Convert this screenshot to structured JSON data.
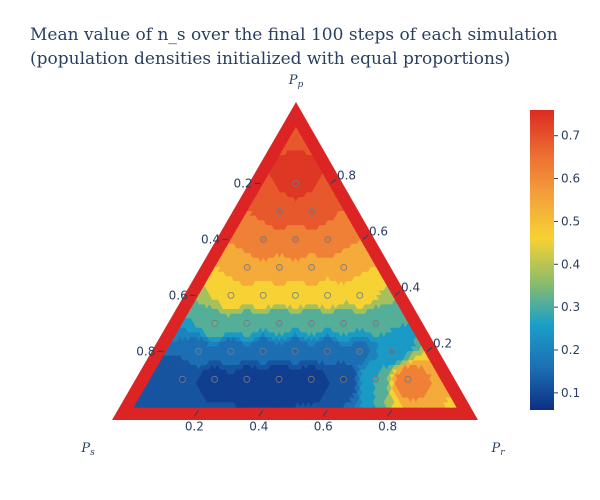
{
  "chart_data": {
    "type": "ternary-contour",
    "title_lines": [
      "Mean value of n_s over the final 100 steps of each simulation",
      "(population densities initialized with equal proportions)"
    ],
    "axes": {
      "top": {
        "symbol": "P",
        "sub": "p",
        "ticks": [
          "0.2",
          "0.4",
          "0.6",
          "0.8"
        ]
      },
      "left": {
        "symbol": "P",
        "sub": "s",
        "ticks": [
          "0.8",
          "0.6",
          "0.4",
          "0.2"
        ]
      },
      "right": {
        "symbol": "P",
        "sub": "r",
        "ticks": [
          "0.2",
          "0.4",
          "0.6",
          "0.8"
        ]
      }
    },
    "colorbar": {
      "ticks": [
        "0.1",
        "0.2",
        "0.3",
        "0.4",
        "0.5",
        "0.6",
        "0.7"
      ],
      "range": [
        0.06,
        0.76
      ],
      "colorscale": [
        "#0d2f84",
        "#1d6fb4",
        "#1aa0c8",
        "#8fbd68",
        "#f6d234",
        "#f4a13b",
        "#ec6b32",
        "#db2b22"
      ]
    },
    "levels": [
      0.07,
      0.1,
      0.14,
      0.18,
      0.22,
      0.28,
      0.34,
      0.42,
      0.5,
      0.58,
      0.66,
      0.72
    ],
    "samples": [
      {
        "pp": 0.1,
        "ps": 0.1,
        "pr": 0.8,
        "value": 0.62
      },
      {
        "pp": 0.1,
        "ps": 0.2,
        "pr": 0.7,
        "value": 0.28
      },
      {
        "pp": 0.1,
        "ps": 0.3,
        "pr": 0.6,
        "value": 0.1
      },
      {
        "pp": 0.1,
        "ps": 0.4,
        "pr": 0.5,
        "value": 0.08
      },
      {
        "pp": 0.1,
        "ps": 0.5,
        "pr": 0.4,
        "value": 0.07
      },
      {
        "pp": 0.1,
        "ps": 0.6,
        "pr": 0.3,
        "value": 0.08
      },
      {
        "pp": 0.1,
        "ps": 0.7,
        "pr": 0.2,
        "value": 0.09
      },
      {
        "pp": 0.1,
        "ps": 0.8,
        "pr": 0.1,
        "value": 0.1
      },
      {
        "pp": 0.2,
        "ps": 0.1,
        "pr": 0.7,
        "value": 0.22
      },
      {
        "pp": 0.2,
        "ps": 0.2,
        "pr": 0.6,
        "value": 0.17
      },
      {
        "pp": 0.2,
        "ps": 0.3,
        "pr": 0.5,
        "value": 0.15
      },
      {
        "pp": 0.2,
        "ps": 0.4,
        "pr": 0.4,
        "value": 0.15
      },
      {
        "pp": 0.2,
        "ps": 0.5,
        "pr": 0.3,
        "value": 0.15
      },
      {
        "pp": 0.2,
        "ps": 0.6,
        "pr": 0.2,
        "value": 0.16
      },
      {
        "pp": 0.2,
        "ps": 0.7,
        "pr": 0.1,
        "value": 0.17
      },
      {
        "pp": 0.3,
        "ps": 0.1,
        "pr": 0.6,
        "value": 0.3
      },
      {
        "pp": 0.3,
        "ps": 0.2,
        "pr": 0.5,
        "value": 0.3
      },
      {
        "pp": 0.3,
        "ps": 0.3,
        "pr": 0.4,
        "value": 0.3
      },
      {
        "pp": 0.3,
        "ps": 0.4,
        "pr": 0.3,
        "value": 0.3
      },
      {
        "pp": 0.3,
        "ps": 0.5,
        "pr": 0.2,
        "value": 0.31
      },
      {
        "pp": 0.3,
        "ps": 0.6,
        "pr": 0.1,
        "value": 0.32
      },
      {
        "pp": 0.4,
        "ps": 0.1,
        "pr": 0.5,
        "value": 0.45
      },
      {
        "pp": 0.4,
        "ps": 0.2,
        "pr": 0.4,
        "value": 0.46
      },
      {
        "pp": 0.4,
        "ps": 0.3,
        "pr": 0.3,
        "value": 0.46
      },
      {
        "pp": 0.4,
        "ps": 0.4,
        "pr": 0.2,
        "value": 0.46
      },
      {
        "pp": 0.4,
        "ps": 0.5,
        "pr": 0.1,
        "value": 0.46
      },
      {
        "pp": 0.5,
        "ps": 0.1,
        "pr": 0.4,
        "value": 0.56
      },
      {
        "pp": 0.5,
        "ps": 0.2,
        "pr": 0.3,
        "value": 0.57
      },
      {
        "pp": 0.5,
        "ps": 0.3,
        "pr": 0.2,
        "value": 0.57
      },
      {
        "pp": 0.5,
        "ps": 0.4,
        "pr": 0.1,
        "value": 0.57
      },
      {
        "pp": 0.6,
        "ps": 0.1,
        "pr": 0.3,
        "value": 0.64
      },
      {
        "pp": 0.6,
        "ps": 0.2,
        "pr": 0.2,
        "value": 0.65
      },
      {
        "pp": 0.6,
        "ps": 0.3,
        "pr": 0.1,
        "value": 0.65
      },
      {
        "pp": 0.7,
        "ps": 0.1,
        "pr": 0.2,
        "value": 0.7
      },
      {
        "pp": 0.7,
        "ps": 0.2,
        "pr": 0.1,
        "value": 0.7
      },
      {
        "pp": 0.8,
        "ps": 0.1,
        "pr": 0.1,
        "value": 0.74
      }
    ]
  }
}
